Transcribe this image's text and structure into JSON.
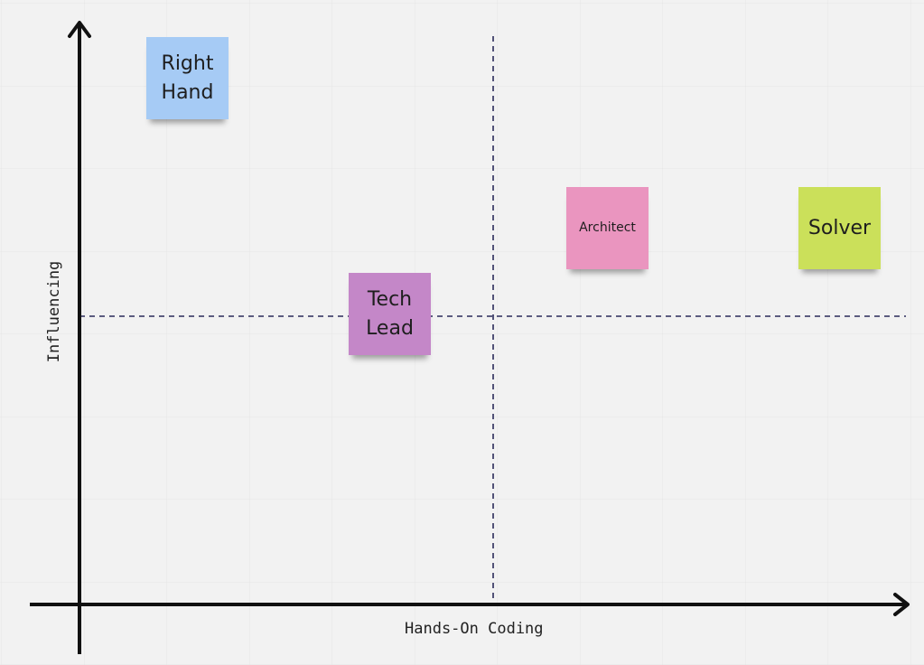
{
  "axes": {
    "x_label": "Hands-On Coding",
    "y_label": "Influencing"
  },
  "notes": [
    {
      "label": "Right\nHand",
      "color": "#a6cbf5"
    },
    {
      "label": "Tech\nLead",
      "color": "#c487c8"
    },
    {
      "label": "Architect",
      "color": "#ea95bf"
    },
    {
      "label": "Solver",
      "color": "#cbe05a"
    }
  ],
  "colors": {
    "axis": "#111111",
    "divider": "#2a2a5a",
    "background": "#f2f2f2",
    "grid": "#e6e6e6"
  }
}
